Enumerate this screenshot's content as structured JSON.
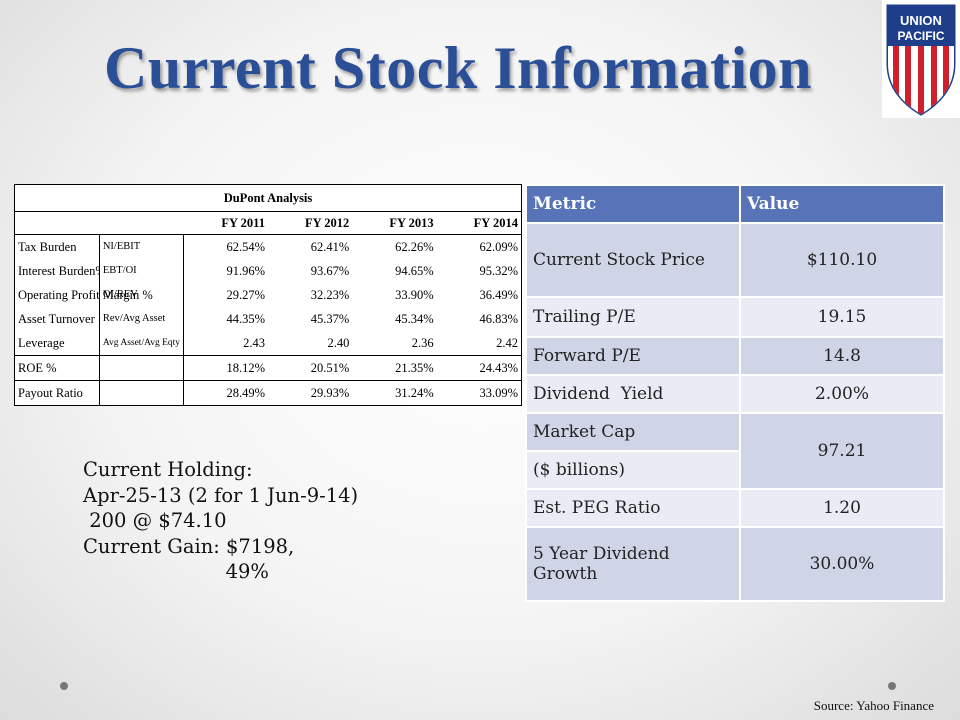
{
  "title": "Current Stock Information",
  "logo": {
    "line1": "UNION",
    "line2": "PACIFIC",
    "colors": {
      "blue": "#1f3e8a",
      "red": "#d0202e"
    }
  },
  "dupont": {
    "caption": "DuPont Analysis",
    "years": [
      "FY 2011",
      "FY 2012",
      "FY 2013",
      "FY 2014"
    ],
    "rows": [
      {
        "label": "Tax Burden",
        "formula": "NI/EBIT",
        "values": [
          "62.54%",
          "62.41%",
          "62.26%",
          "62.09%"
        ]
      },
      {
        "label": "Interest Burden%",
        "formula": "EBT/OI",
        "values": [
          "91.96%",
          "93.67%",
          "94.65%",
          "95.32%"
        ]
      },
      {
        "label": "Operating Profit Margin %",
        "formula": "OI/REV",
        "values": [
          "29.27%",
          "32.23%",
          "33.90%",
          "36.49%"
        ]
      },
      {
        "label": "Asset Turnover",
        "formula": "Rev/Avg Asset",
        "values": [
          "44.35%",
          "45.37%",
          "45.34%",
          "46.83%"
        ]
      },
      {
        "label": "Leverage",
        "formula": "Avg Asset/Avg Eqty",
        "values": [
          "2.43",
          "2.40",
          "2.36",
          "2.42"
        ]
      },
      {
        "label": "ROE %",
        "formula": "",
        "values": [
          "18.12%",
          "20.51%",
          "21.35%",
          "24.43%"
        ]
      },
      {
        "label": "Payout Ratio",
        "formula": "",
        "values": [
          "28.49%",
          "29.93%",
          "31.24%",
          "33.09%"
        ]
      }
    ]
  },
  "metrics": {
    "headers": [
      "Metric",
      "Value"
    ],
    "rows": [
      {
        "metric": "Current Stock Price",
        "value": "$110.10"
      },
      {
        "metric": "Trailing P/E",
        "value": "19.15"
      },
      {
        "metric": "Forward P/E",
        "value": "14.8"
      },
      {
        "metric": "Dividend  Yield",
        "value": "2.00%"
      },
      {
        "metric": "Market Cap",
        "metric2": "($ billions)",
        "value": "97.21"
      },
      {
        "metric": "Est. PEG Ratio",
        "value": "1.20"
      },
      {
        "metric": "5 Year Dividend Growth",
        "value": "30.00%"
      }
    ]
  },
  "holding": {
    "line1": "Current Holding:",
    "line2": "Apr-25-13 (2 for 1 Jun-9-14)",
    "line3": " 200 @ $74.10",
    "line4": "Current Gain: $7198,",
    "line5": "                       49%"
  },
  "source": "Source: Yahoo Finance"
}
